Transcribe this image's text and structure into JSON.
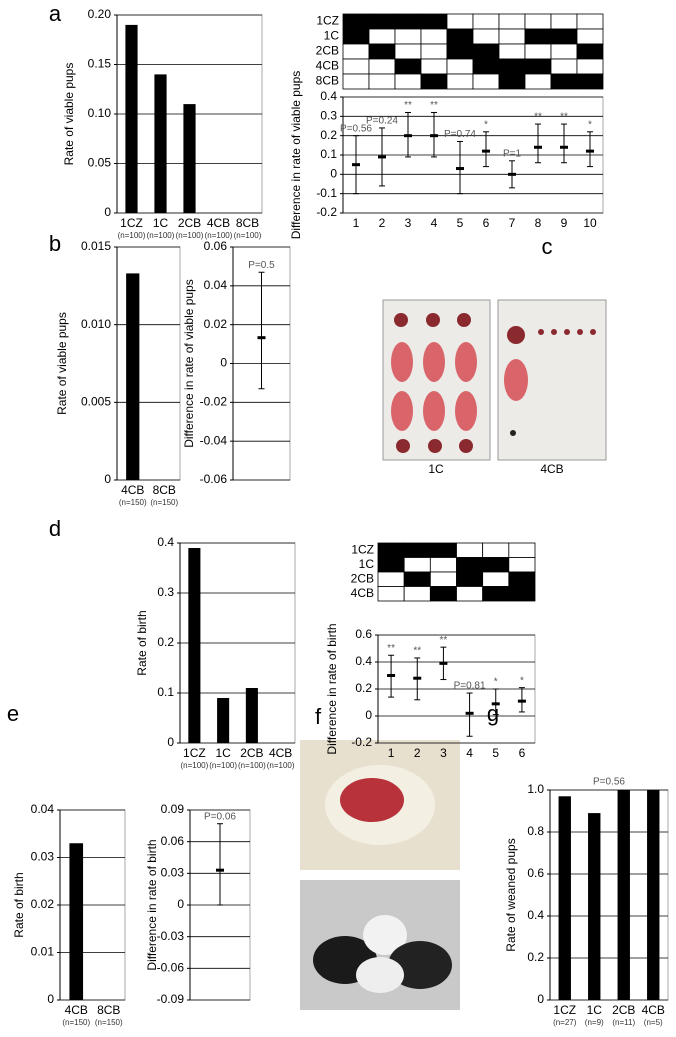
{
  "chart_data": [
    {
      "type": "bar",
      "panel": "a",
      "y_label": "Rate of viable pups",
      "categories": [
        "1CZ",
        "1C",
        "2CB",
        "4CB",
        "8CB"
      ],
      "category_notes": [
        "(n=100)",
        "(n=100)",
        "(n=100)",
        "(n=100)",
        "(n=100)"
      ],
      "values": [
        0.19,
        0.14,
        0.11,
        0,
        0
      ],
      "color": "#000000",
      "ylim": [
        0,
        0.2
      ],
      "yticks": [
        0,
        0.05,
        {
          "value": 0.1,
          "label": "0.10"
        },
        0.15,
        {
          "value": 0.2,
          "label": "0.20"
        }
      ],
      "grid": true
    },
    {
      "type": "errorbar",
      "y_label": "Difference in rate of viable pups",
      "matrix_rows": [
        "1CZ",
        "1C",
        "2CB",
        "4CB",
        "8CB"
      ],
      "matrix": [
        [
          1,
          1,
          1,
          1,
          0,
          0,
          0,
          0,
          0,
          0
        ],
        [
          1,
          0,
          0,
          0,
          1,
          0,
          0,
          1,
          1,
          0
        ],
        [
          0,
          1,
          0,
          0,
          1,
          1,
          0,
          0,
          0,
          1
        ],
        [
          0,
          0,
          1,
          0,
          0,
          1,
          1,
          1,
          0,
          0
        ],
        [
          0,
          0,
          0,
          1,
          0,
          0,
          1,
          0,
          1,
          1
        ]
      ],
      "categories": [
        "1",
        "2",
        "3",
        "4",
        "5",
        "6",
        "7",
        "8",
        "9",
        "10"
      ],
      "values": [
        0.05,
        0.09,
        0.2,
        0.2,
        0.03,
        0.12,
        0,
        0.14,
        0.14,
        0.12
      ],
      "lower": [
        -0.1,
        -0.06,
        0.09,
        0.09,
        -0.1,
        0.04,
        -0.07,
        0.06,
        0.06,
        0.04
      ],
      "upper": [
        0.2,
        0.24,
        0.32,
        0.32,
        0.17,
        0.22,
        0.07,
        0.26,
        0.26,
        0.22
      ],
      "annotations": [
        "P=0.56",
        "P=0.24",
        "**",
        "**",
        "P=0.74",
        "*",
        "P=1",
        "**",
        "**",
        "*"
      ],
      "ylim": [
        -0.2,
        0.4
      ],
      "yticks": [
        -0.2,
        -0.1,
        0,
        0.1,
        0.2,
        0.3,
        0.4
      ],
      "grid": true
    },
    {
      "type": "bar",
      "panel": "b",
      "y_label": "Rate of viable pups",
      "categories": [
        "4CB",
        "8CB"
      ],
      "category_notes": [
        "(n=150)",
        "(n=150)"
      ],
      "values": [
        0.0133,
        0
      ],
      "color": "#000000",
      "ylim": [
        0,
        0.015
      ],
      "yticks": [
        0,
        0.005,
        {
          "value": 0.01,
          "label": "0.010"
        },
        0.015
      ],
      "grid": true
    },
    {
      "type": "errorbar",
      "y_label": "Difference in rate of viable pups",
      "values": [
        0.0133
      ],
      "lower": [
        -0.013
      ],
      "upper": [
        0.047
      ],
      "annotations": [
        "P=0.5"
      ],
      "ylim": [
        -0.06,
        0.06
      ],
      "yticks": [
        -0.06,
        -0.04,
        -0.02,
        0,
        0.02,
        0.04,
        0.06
      ],
      "grid": true
    },
    {
      "type": "bar",
      "panel": "d",
      "y_label": "Rate of birth",
      "categories": [
        "1CZ",
        "1C",
        "2CB",
        "4CB"
      ],
      "category_notes": [
        "(n=100)",
        "(n=100)",
        "(n=100)",
        "(n=100)"
      ],
      "values": [
        0.39,
        0.09,
        0.11,
        0
      ],
      "color": "#000000",
      "ylim": [
        0,
        0.4
      ],
      "yticks": [
        0,
        0.1,
        0.2,
        0.3,
        0.4
      ],
      "grid": true
    },
    {
      "type": "errorbar",
      "y_label": "Difference in rate of birth",
      "matrix_rows": [
        "1CZ",
        "1C",
        "2CB",
        "4CB"
      ],
      "matrix": [
        [
          1,
          1,
          1,
          0,
          0,
          0
        ],
        [
          1,
          0,
          0,
          1,
          1,
          0
        ],
        [
          0,
          1,
          0,
          1,
          0,
          1
        ],
        [
          0,
          0,
          1,
          0,
          1,
          1
        ]
      ],
      "categories": [
        "1",
        "2",
        "3",
        "4",
        "5",
        "6"
      ],
      "values": [
        0.3,
        0.28,
        0.39,
        0.02,
        0.09,
        0.11
      ],
      "lower": [
        0.14,
        0.12,
        0.27,
        -0.15,
        0.01,
        0.03
      ],
      "upper": [
        0.45,
        0.43,
        0.51,
        0.17,
        0.2,
        0.21
      ],
      "annotations": [
        "**",
        "**",
        "**",
        "P=0.81",
        "*",
        "*"
      ],
      "ylim": [
        -0.2,
        0.6
      ],
      "yticks": [
        -0.2,
        0,
        0.2,
        0.4,
        0.6
      ],
      "grid": true
    },
    {
      "type": "bar",
      "panel": "e",
      "y_label": "Rate of birth",
      "categories": [
        "4CB",
        "8CB"
      ],
      "category_notes": [
        "(n=150)",
        "(n=150)"
      ],
      "values": [
        0.033,
        0
      ],
      "color": "#000000",
      "ylim": [
        0,
        0.04
      ],
      "yticks": [
        0,
        0.01,
        0.02,
        0.03,
        0.04
      ],
      "grid": true
    },
    {
      "type": "errorbar",
      "y_label": "Difference in rate of birth",
      "values": [
        0.033
      ],
      "lower": [
        0
      ],
      "upper": [
        0.077
      ],
      "annotations": [
        "P=0.06"
      ],
      "ylim": [
        -0.09,
        0.09
      ],
      "yticks": [
        -0.09,
        -0.06,
        -0.03,
        0,
        0.03,
        0.06,
        0.09
      ],
      "grid": true
    },
    {
      "type": "bar",
      "panel": "g",
      "y_label": "Rate of weaned pups",
      "annotation": "P=0.56",
      "categories": [
        "1CZ",
        "1C",
        "2CB",
        "4CB"
      ],
      "category_notes": [
        "(n=27)",
        "(n=9)",
        "(n=11)",
        "(n=5)"
      ],
      "values": [
        0.97,
        0.89,
        1,
        1
      ],
      "color": "#000000",
      "ylim": [
        0,
        1
      ],
      "yticks": [
        0,
        0.2,
        0.4,
        0.6,
        0.8,
        {
          "value": 1,
          "label": "1.0"
        }
      ],
      "grid": true
    }
  ],
  "photos": [
    {
      "panel": "c",
      "labels": [
        "1C",
        "4CB"
      ]
    },
    {
      "panel": "f"
    }
  ]
}
